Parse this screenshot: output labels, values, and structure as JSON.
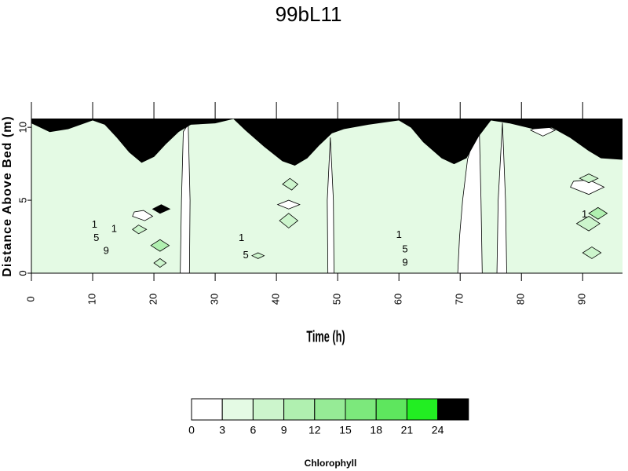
{
  "chart_data": {
    "type": "contour",
    "title": "99bL11",
    "x_label": "Time (h)",
    "y_label": "Distance Above Bed (m)",
    "xlim": [
      0,
      96.5
    ],
    "ylim": [
      0,
      10.6
    ],
    "xticks": [
      0,
      10,
      20,
      30,
      40,
      50,
      60,
      70,
      80,
      90
    ],
    "yticks": [
      0,
      5,
      10
    ],
    "levels": [
      0,
      3,
      6,
      9,
      12,
      15,
      18,
      21,
      24
    ],
    "colors": [
      "#ffffff",
      "#e4fae4",
      "#ccf5cc",
      "#b0f0b0",
      "#96eb96",
      "#7ce87c",
      "#5ee65e",
      "#22ee22",
      "#000000"
    ],
    "colorbar_label": "Chlorophyll",
    "background_value": 4.5,
    "mask_color": "#000000",
    "surface": {
      "x": [
        0,
        3,
        6,
        10,
        12,
        14,
        16,
        18,
        20,
        22,
        24,
        26,
        30,
        33,
        35,
        38,
        41,
        43,
        45,
        47,
        49,
        51,
        55,
        60,
        62,
        64,
        67,
        69,
        71,
        73,
        75,
        78,
        82,
        85,
        88,
        91,
        93,
        96.5
      ],
      "y": [
        10.3,
        9.7,
        9.9,
        10.5,
        10.2,
        9.3,
        8.3,
        7.6,
        8.0,
        8.9,
        9.7,
        10.2,
        10.3,
        10.6,
        9.8,
        8.7,
        7.7,
        7.4,
        7.9,
        8.8,
        9.6,
        9.9,
        10.2,
        10.5,
        10.0,
        9.0,
        7.9,
        7.5,
        7.9,
        9.4,
        10.5,
        10.3,
        9.9,
        10.0,
        9.3,
        8.4,
        7.9,
        7.8
      ]
    },
    "regions": [
      {
        "value": 1.5,
        "x": [
          24.3,
          25.8,
          25.9,
          25.6,
          24.8,
          24.5
        ],
        "y": [
          0,
          0,
          5,
          10.2,
          9.7,
          5
        ]
      },
      {
        "value": 1.5,
        "x": [
          48.4,
          49.4,
          49.3,
          48.8,
          48.3
        ],
        "y": [
          0,
          0,
          5,
          9.3,
          5
        ]
      },
      {
        "value": 1.5,
        "x": [
          69.6,
          73.6,
          73.4,
          73.1,
          72.2,
          71.2,
          70.4,
          69.9
        ],
        "y": [
          0,
          0,
          5,
          10.3,
          9.2,
          7.8,
          5,
          2.5
        ]
      },
      {
        "value": 1.5,
        "x": [
          76.0,
          77.6,
          77.4,
          76.9,
          76.2
        ],
        "y": [
          0,
          0,
          5,
          10.3,
          5
        ]
      },
      {
        "value": 1.5,
        "x": [
          16.5,
          18.5,
          19.8,
          18.3,
          16.8
        ],
        "y": [
          3.9,
          3.6,
          3.9,
          4.3,
          4.2
        ]
      },
      {
        "value": 1.5,
        "x": [
          40.2,
          42.0,
          43.8,
          42.0
        ],
        "y": [
          4.7,
          4.4,
          4.7,
          5.0
        ]
      },
      {
        "value": 1.5,
        "x": [
          88.0,
          91.0,
          93.5,
          91.0,
          88.5
        ],
        "y": [
          5.9,
          5.4,
          5.9,
          6.4,
          6.3
        ]
      },
      {
        "value": 1.5,
        "x": [
          81.5,
          83.5,
          85.5,
          83.5
        ],
        "y": [
          9.8,
          9.4,
          9.8,
          10.2
        ]
      },
      {
        "value": 7.5,
        "x": [
          40.5,
          42.0,
          43.5,
          42.0
        ],
        "y": [
          3.6,
          3.1,
          3.6,
          4.1
        ]
      },
      {
        "value": 7.5,
        "x": [
          41.0,
          42.5,
          43.5,
          42.2
        ],
        "y": [
          6.1,
          5.7,
          6.1,
          6.5
        ]
      },
      {
        "value": 7.5,
        "x": [
          16.5,
          17.5,
          18.8,
          17.5
        ],
        "y": [
          3.0,
          2.7,
          3.0,
          3.3
        ]
      },
      {
        "value": 10.5,
        "x": [
          19.5,
          21.0,
          22.5,
          21.0
        ],
        "y": [
          1.9,
          1.5,
          1.9,
          2.3
        ]
      },
      {
        "value": 7.5,
        "x": [
          20.0,
          21.0,
          22.0,
          21.0
        ],
        "y": [
          0.7,
          0.4,
          0.7,
          1.0
        ]
      },
      {
        "value": 25.5,
        "x": [
          19.8,
          21.0,
          22.6,
          21.2
        ],
        "y": [
          4.4,
          4.1,
          4.4,
          4.7
        ]
      },
      {
        "value": 7.5,
        "x": [
          89.0,
          91.0,
          92.8,
          91.0
        ],
        "y": [
          3.4,
          2.9,
          3.4,
          3.9
        ]
      },
      {
        "value": 10.5,
        "x": [
          91.0,
          92.5,
          94.0,
          92.5
        ],
        "y": [
          4.1,
          3.7,
          4.1,
          4.5
        ]
      },
      {
        "value": 7.5,
        "x": [
          90.0,
          91.5,
          93.0,
          91.5
        ],
        "y": [
          1.4,
          1.0,
          1.4,
          1.8
        ]
      },
      {
        "value": 7.5,
        "x": [
          89.5,
          91.0,
          92.5,
          91.0
        ],
        "y": [
          6.5,
          6.2,
          6.5,
          6.8
        ]
      },
      {
        "value": 7.5,
        "x": [
          36.0,
          37.0,
          38.0,
          37.0
        ],
        "y": [
          1.2,
          1.0,
          1.2,
          1.4
        ]
      }
    ],
    "contour_labels": [
      {
        "x": 10.3,
        "y": 3.3,
        "value": 1
      },
      {
        "x": 10.6,
        "y": 2.4,
        "value": 5
      },
      {
        "x": 12.2,
        "y": 1.5,
        "value": 9
      },
      {
        "x": 13.5,
        "y": 3.0,
        "value": 1
      },
      {
        "x": 34.3,
        "y": 2.4,
        "value": 1
      },
      {
        "x": 35.0,
        "y": 1.2,
        "value": 5
      },
      {
        "x": 60.0,
        "y": 2.6,
        "value": 1
      },
      {
        "x": 61.0,
        "y": 1.6,
        "value": 5
      },
      {
        "x": 61.0,
        "y": 0.7,
        "value": 9
      },
      {
        "x": 90.3,
        "y": 4.0,
        "value": 1
      }
    ]
  }
}
